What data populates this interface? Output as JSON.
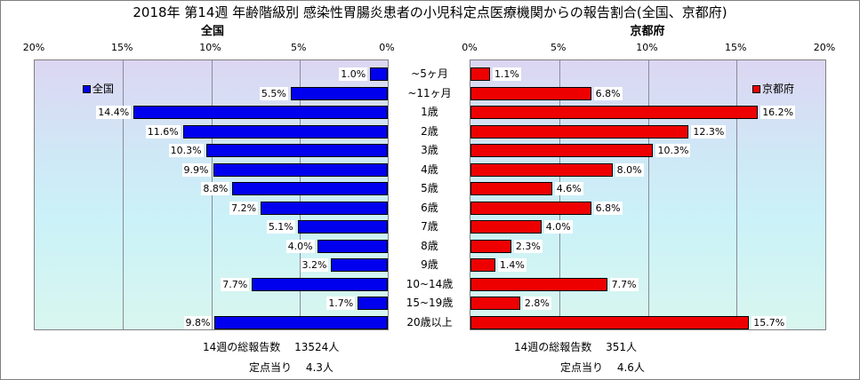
{
  "title": "2018年 第14週 年齢階級別 感染性胃腸炎患者の小児科定点医療機関からの報告割合(全国、京都府)",
  "chart_data": {
    "type": "bar",
    "orientation": "horizontal",
    "categories": [
      "~5ヶ月",
      "~11ヶ月",
      "1歳",
      "2歳",
      "3歳",
      "4歳",
      "5歳",
      "6歳",
      "7歳",
      "8歳",
      "9歳",
      "10~14歳",
      "15~19歳",
      "20歳以上"
    ],
    "xlim": [
      0,
      20
    ],
    "x_ticks": [
      "0%",
      "5%",
      "10%",
      "15%",
      "20%"
    ],
    "panels": [
      {
        "title": "全国",
        "direction": "left",
        "color": "#0000ee",
        "legend": "全国",
        "values": [
          1.0,
          5.5,
          14.4,
          11.6,
          10.3,
          9.9,
          8.8,
          7.2,
          5.1,
          4.0,
          3.2,
          7.7,
          1.7,
          9.8
        ],
        "labels": [
          "1.0%",
          "5.5%",
          "14.4%",
          "11.6%",
          "10.3%",
          "9.9%",
          "8.8%",
          "7.2%",
          "5.1%",
          "4.0%",
          "3.2%",
          "7.7%",
          "1.7%",
          "9.8%"
        ]
      },
      {
        "title": "京都府",
        "direction": "right",
        "color": "#ee0000",
        "legend": "京都府",
        "values": [
          1.1,
          6.8,
          16.2,
          12.3,
          10.3,
          8.0,
          4.6,
          6.8,
          4.0,
          2.3,
          1.4,
          7.7,
          2.8,
          15.7
        ],
        "labels": [
          "1.1%",
          "6.8%",
          "16.2%",
          "12.3%",
          "10.3%",
          "8.0%",
          "4.6%",
          "6.8%",
          "4.0%",
          "2.3%",
          "1.4%",
          "7.7%",
          "2.8%",
          "15.7%"
        ]
      }
    ]
  },
  "footer": {
    "zenkoku_reports": "14週の総報告数　 13524人",
    "zenkoku_per_point": "定点当り　 4.3人",
    "kyoto_reports": "14週の総報告数　 351人",
    "kyoto_per_point": "定点当り　 4.6人"
  }
}
